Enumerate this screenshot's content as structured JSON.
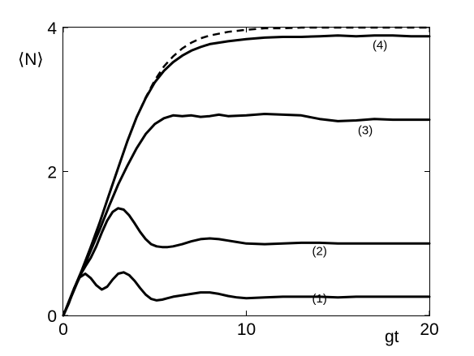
{
  "chart_data": {
    "type": "line",
    "xlabel": "gt",
    "ylabel": "⟨N⟩",
    "xlim": [
      0,
      20
    ],
    "ylim": [
      0,
      4
    ],
    "xticks": [
      0,
      10,
      20
    ],
    "yticks": [
      0,
      2,
      4
    ],
    "grid": false,
    "legend": "none",
    "series": [
      {
        "name": "(1)",
        "style": "solid",
        "x": [
          0,
          0.3,
          0.6,
          0.9,
          1.2,
          1.5,
          1.8,
          2.1,
          2.4,
          2.7,
          3.0,
          3.3,
          3.6,
          3.9,
          4.2,
          4.5,
          4.8,
          5.1,
          5.4,
          5.7,
          6.0,
          6.5,
          7.0,
          7.5,
          8.0,
          8.5,
          9.0,
          9.5,
          10.0,
          11.0,
          12.0,
          13.0,
          14.0,
          15.0,
          16.0,
          17.0,
          18.0,
          19.0,
          20.0
        ],
        "y": [
          0,
          0.17,
          0.38,
          0.53,
          0.58,
          0.52,
          0.42,
          0.36,
          0.4,
          0.5,
          0.58,
          0.6,
          0.56,
          0.48,
          0.38,
          0.29,
          0.23,
          0.21,
          0.22,
          0.24,
          0.26,
          0.28,
          0.3,
          0.32,
          0.32,
          0.3,
          0.27,
          0.25,
          0.24,
          0.25,
          0.26,
          0.26,
          0.26,
          0.25,
          0.26,
          0.26,
          0.26,
          0.26,
          0.26
        ]
      },
      {
        "name": "(2)",
        "style": "solid",
        "x": [
          0,
          0.3,
          0.6,
          0.9,
          1.2,
          1.5,
          1.8,
          2.1,
          2.4,
          2.7,
          3.0,
          3.3,
          3.6,
          3.9,
          4.2,
          4.5,
          4.8,
          5.1,
          5.4,
          5.7,
          6.0,
          6.5,
          7.0,
          7.5,
          8.0,
          8.5,
          9.0,
          9.5,
          10.0,
          11.0,
          12.0,
          13.0,
          14.0,
          15.0,
          16.0,
          17.0,
          18.0,
          19.0,
          20.0
        ],
        "y": [
          0,
          0.17,
          0.38,
          0.55,
          0.68,
          0.8,
          0.96,
          1.15,
          1.32,
          1.44,
          1.49,
          1.47,
          1.39,
          1.28,
          1.16,
          1.06,
          0.99,
          0.96,
          0.95,
          0.95,
          0.96,
          0.99,
          1.03,
          1.06,
          1.07,
          1.06,
          1.04,
          1.02,
          1.0,
          0.99,
          1.0,
          1.01,
          1.01,
          1.0,
          1.0,
          1.0,
          1.0,
          1.0,
          1.0
        ]
      },
      {
        "name": "(3)",
        "style": "solid",
        "x": [
          0,
          0.5,
          1.0,
          1.5,
          2.0,
          2.5,
          3.0,
          3.5,
          4.0,
          4.5,
          5.0,
          5.5,
          6.0,
          6.5,
          7.0,
          7.5,
          8.0,
          8.5,
          9.0,
          10.0,
          11.0,
          12.0,
          13.0,
          14.0,
          15.0,
          16.0,
          17.0,
          18.0,
          19.0,
          20.0
        ],
        "y": [
          0,
          0.3,
          0.6,
          0.9,
          1.2,
          1.52,
          1.82,
          2.08,
          2.32,
          2.52,
          2.66,
          2.74,
          2.78,
          2.77,
          2.78,
          2.76,
          2.77,
          2.79,
          2.77,
          2.78,
          2.8,
          2.79,
          2.78,
          2.73,
          2.7,
          2.71,
          2.73,
          2.72,
          2.72,
          2.72
        ]
      },
      {
        "name": "(4)",
        "style": "solid",
        "x": [
          0,
          0.5,
          1.0,
          1.5,
          2.0,
          2.5,
          3.0,
          3.5,
          4.0,
          4.5,
          5.0,
          5.5,
          6.0,
          6.5,
          7.0,
          7.5,
          8.0,
          9.0,
          10.0,
          11.0,
          12.0,
          13.0,
          14.0,
          15.0,
          16.0,
          17.0,
          18.0,
          19.0,
          20.0
        ],
        "y": [
          0,
          0.32,
          0.62,
          0.95,
          1.3,
          1.68,
          2.05,
          2.42,
          2.75,
          3.02,
          3.24,
          3.4,
          3.52,
          3.61,
          3.68,
          3.73,
          3.77,
          3.81,
          3.84,
          3.86,
          3.87,
          3.87,
          3.88,
          3.89,
          3.88,
          3.89,
          3.89,
          3.88,
          3.88
        ]
      },
      {
        "name": "",
        "style": "dashed",
        "x": [
          0,
          0.5,
          1.0,
          1.5,
          2.0,
          2.5,
          3.0,
          3.5,
          4.0,
          4.5,
          5.0,
          5.5,
          6.0,
          6.5,
          7.0,
          7.5,
          8.0,
          9.0,
          10.0,
          11.0,
          12.0,
          13.0,
          14.0,
          15.0,
          16.0,
          17.0,
          18.0,
          19.0,
          20.0
        ],
        "y": [
          0,
          0.32,
          0.62,
          0.95,
          1.3,
          1.68,
          2.05,
          2.42,
          2.75,
          3.03,
          3.27,
          3.46,
          3.6,
          3.71,
          3.79,
          3.85,
          3.89,
          3.94,
          3.97,
          3.99,
          3.99,
          4.0,
          4.0,
          4.0,
          4.0,
          4.0,
          4.0,
          4.0,
          4.0
        ]
      }
    ],
    "curve_labels": [
      {
        "text": "(1)",
        "x": 14.0,
        "y": 0.18
      },
      {
        "text": "(2)",
        "x": 14.0,
        "y": 0.84
      },
      {
        "text": "(3)",
        "x": 16.5,
        "y": 2.52
      },
      {
        "text": "(4)",
        "x": 17.3,
        "y": 3.7
      }
    ]
  }
}
